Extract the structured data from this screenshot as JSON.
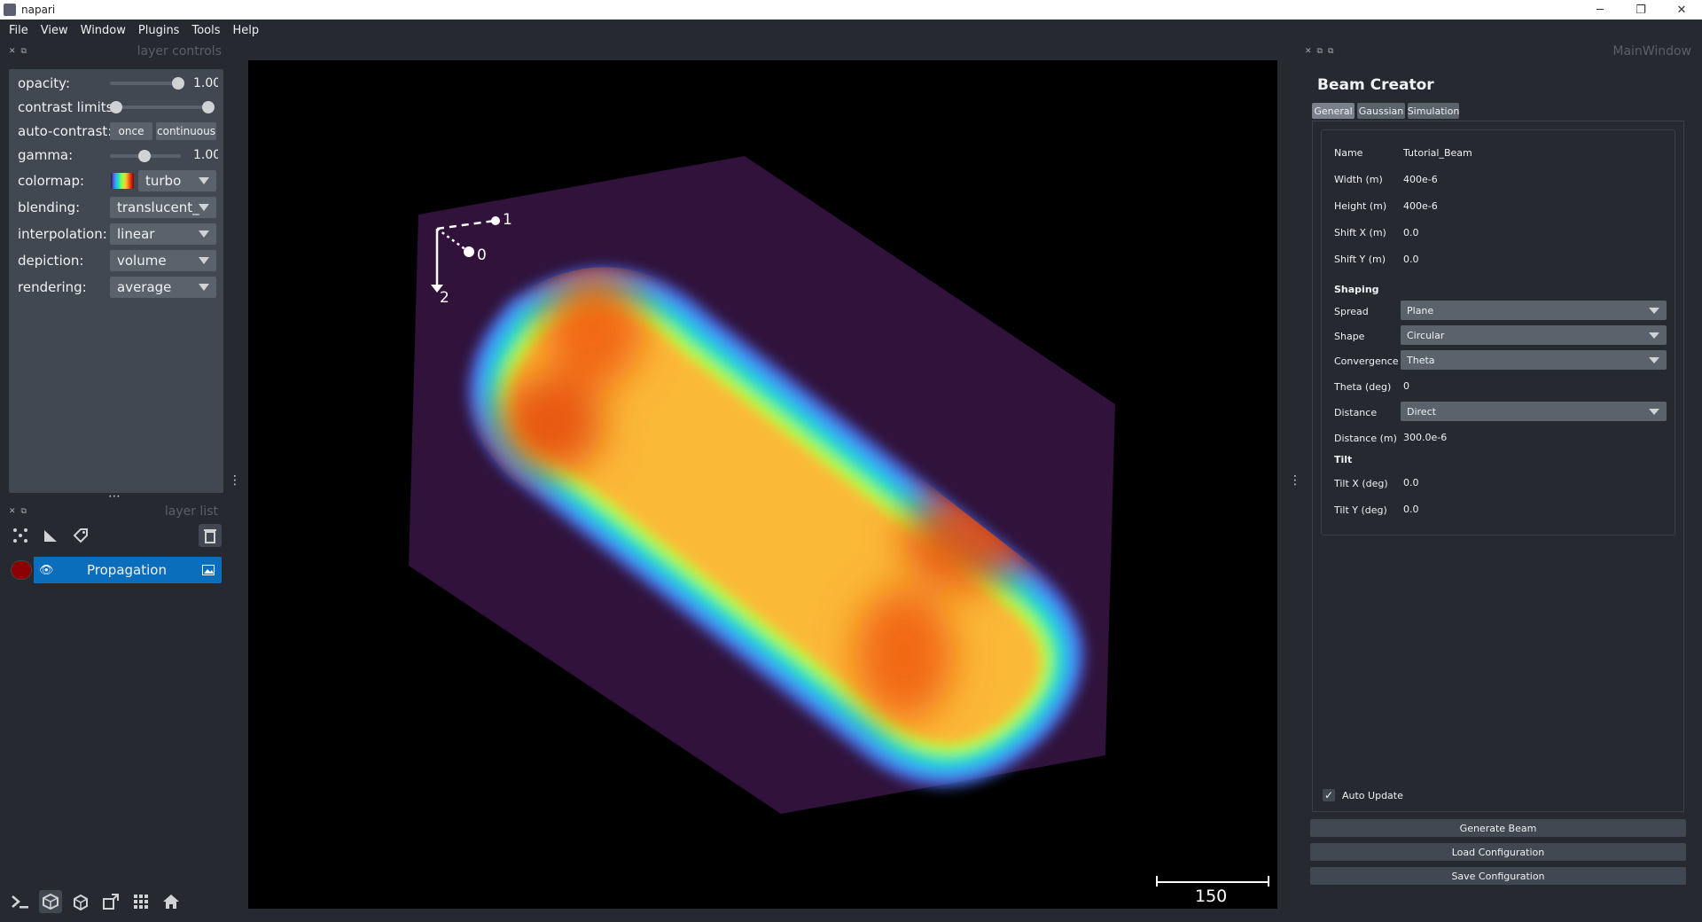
{
  "window": {
    "title": "napari",
    "controls": [
      "─",
      "❐",
      "✕"
    ]
  },
  "menu": [
    "File",
    "View",
    "Window",
    "Plugins",
    "Tools",
    "Help"
  ],
  "layer_controls": {
    "header": "layer controls",
    "opacity_label": "opacity:",
    "opacity_value": "1.00",
    "opacity_level": 1.0,
    "contrast_label": "contrast limits:",
    "autocontrast_label": "auto-contrast:",
    "once_label": "once",
    "continuous_label": "continuous",
    "gamma_label": "gamma:",
    "gamma_value": "1.00",
    "colormap_label": "colormap:",
    "colormap_value": "turbo",
    "blending_label": "blending:",
    "blending_value": "translucent_",
    "interpolation_label": "interpolation:",
    "interpolation_value": "linear",
    "depiction_label": "depiction:",
    "depiction_value": "volume",
    "rendering_label": "rendering:",
    "rendering_value": "average"
  },
  "layer_list": {
    "header": "layer list",
    "layers": [
      {
        "name": "Propagation",
        "visible": true,
        "color": "#8b0000"
      }
    ]
  },
  "canvas": {
    "axes": [
      "0",
      "1",
      "2"
    ],
    "scale_bar_label": "150"
  },
  "right_dock": {
    "header": "MainWindow",
    "title": "Beam Creator",
    "tabs": [
      "General",
      "Gaussian",
      "Simulation"
    ],
    "active_tab": "General",
    "fields": {
      "name_label": "Name",
      "name_value": "Tutorial_Beam",
      "width_label": "Width (m)",
      "width_value": "400e-6",
      "height_label": "Height (m)",
      "height_value": "400e-6",
      "shiftx_label": "Shift X (m)",
      "shiftx_value": "0.0",
      "shifty_label": "Shift Y (m)",
      "shifty_value": "0.0",
      "shaping_header": "Shaping",
      "spread_label": "Spread",
      "spread_value": "Plane",
      "shape_label": "Shape",
      "shape_value": "Circular",
      "convergence_label": "Convergence",
      "convergence_value": "Theta",
      "theta_label": "Theta (deg)",
      "theta_value": "0",
      "distance_label": "Distance",
      "distance_value": "Direct",
      "distance_m_label": "Distance (m)",
      "distance_m_value": "300.0e-6",
      "tilt_header": "Tilt",
      "tiltx_label": "Tilt X (deg)",
      "tiltx_value": "0.0",
      "tilty_label": "Tilt Y (deg)",
      "tilty_value": "0.0"
    },
    "auto_update_label": "Auto Update",
    "auto_update_checked": true,
    "buttons": {
      "generate": "Generate Beam",
      "load": "Load Configuration",
      "save": "Save Configuration"
    }
  },
  "colors": {
    "background": "#262930",
    "panel": "#414851",
    "highlight": "#0a6ebd",
    "volume_bg": "#30123b"
  }
}
